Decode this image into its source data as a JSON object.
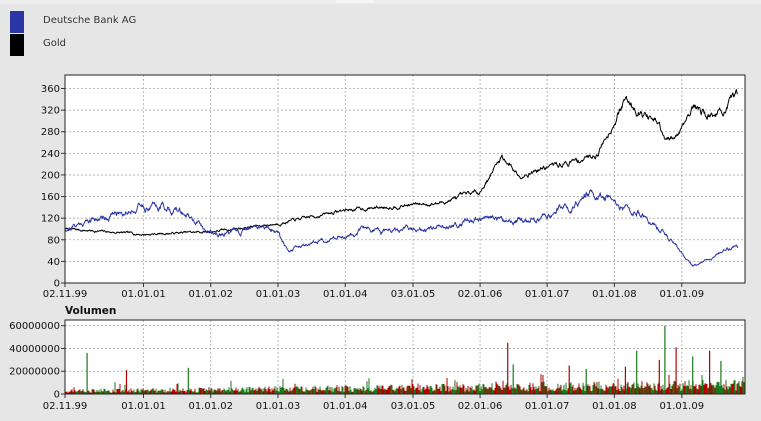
{
  "legend": [
    {
      "label": "Deutsche Bank AG",
      "color": "#2b35a6"
    },
    {
      "label": "Gold",
      "color": "#000000"
    }
  ],
  "chart_data": [
    {
      "type": "line",
      "title": "",
      "xlabel": "",
      "ylabel": "",
      "x_tick_labels": [
        "02.11.99",
        "01.01.01",
        "01.01.02",
        "01.01.03",
        "01.01.04",
        "03.01.05",
        "02.01.06",
        "01.01.07",
        "01.01.08",
        "01.01.09"
      ],
      "y_ticks": [
        0,
        40,
        80,
        120,
        160,
        200,
        240,
        280,
        320,
        360
      ],
      "ylim": [
        0,
        385
      ],
      "grid": true,
      "legend_position": "top-left",
      "series": [
        {
          "name": "Deutsche Bank AG",
          "color": "#2b35a6",
          "x": [
            "02.11.99",
            "01.03.00",
            "01.07.00",
            "01.12.00",
            "01.04.01",
            "01.08.01",
            "01.12.01",
            "01.02.02",
            "01.07.02",
            "01.10.02",
            "01.01.03",
            "01.03.03",
            "01.07.03",
            "01.12.03",
            "01.05.04",
            "01.10.04",
            "01.01.05",
            "01.05.05",
            "01.10.05",
            "01.01.06",
            "01.06.06",
            "01.10.06",
            "01.01.07",
            "01.05.07",
            "01.08.07",
            "01.11.07",
            "01.02.08",
            "01.06.08",
            "01.09.08",
            "01.12.08",
            "01.03.09",
            "01.06.09",
            "01.09.09",
            "01.11.09"
          ],
          "values": [
            100,
            115,
            125,
            140,
            145,
            130,
            98,
            90,
            95,
            105,
            95,
            60,
            75,
            85,
            100,
            95,
            100,
            98,
            112,
            118,
            118,
            113,
            126,
            145,
            163,
            155,
            140,
            125,
            100,
            70,
            30,
            45,
            65,
            65
          ]
        },
        {
          "name": "Gold",
          "color": "#000000",
          "x": [
            "02.11.99",
            "01.01.01",
            "01.01.02",
            "01.01.03",
            "01.01.04",
            "03.01.05",
            "01.06.05",
            "02.01.06",
            "01.05.06",
            "01.08.06",
            "01.01.07",
            "01.06.07",
            "01.10.07",
            "01.01.08",
            "01.03.08",
            "01.06.08",
            "01.09.08",
            "01.10.08",
            "01.12.08",
            "01.03.09",
            "01.06.09",
            "01.09.09",
            "01.11.09"
          ],
          "values": [
            100,
            90,
            95,
            110,
            135,
            145,
            148,
            170,
            235,
            200,
            215,
            225,
            240,
            300,
            340,
            315,
            290,
            260,
            270,
            330,
            310,
            320,
            350
          ]
        }
      ]
    },
    {
      "type": "bar",
      "title": "Volumen",
      "xlabel": "",
      "ylabel": "",
      "x_tick_labels": [
        "02.11.99",
        "01.01.01",
        "01.01.02",
        "01.01.03",
        "01.01.04",
        "03.01.05",
        "02.01.06",
        "01.01.07",
        "01.01.08",
        "01.01.09"
      ],
      "y_ticks": [
        0,
        20000000,
        40000000,
        60000000
      ],
      "ylim": [
        0,
        65000000
      ],
      "grid": true,
      "up_color": "#1a7a1a",
      "down_color": "#b00000",
      "spikes": [
        {
          "x": "01.03.00",
          "value": 36000000
        },
        {
          "x": "01.10.00",
          "value": 21000000
        },
        {
          "x": "01.09.01",
          "value": 23000000
        },
        {
          "x": "01.06.06",
          "value": 45000000
        },
        {
          "x": "01.07.06",
          "value": 26000000
        },
        {
          "x": "01.05.07",
          "value": 25000000
        },
        {
          "x": "01.08.07",
          "value": 22000000
        },
        {
          "x": "01.03.08",
          "value": 24000000
        },
        {
          "x": "01.05.08",
          "value": 38000000
        },
        {
          "x": "01.09.08",
          "value": 30000000
        },
        {
          "x": "01.10.08",
          "value": 60000000
        },
        {
          "x": "01.12.08",
          "value": 41000000
        },
        {
          "x": "01.03.09",
          "value": 33000000
        },
        {
          "x": "01.06.09",
          "value": 38000000
        },
        {
          "x": "01.08.09",
          "value": 29000000
        }
      ]
    }
  ]
}
